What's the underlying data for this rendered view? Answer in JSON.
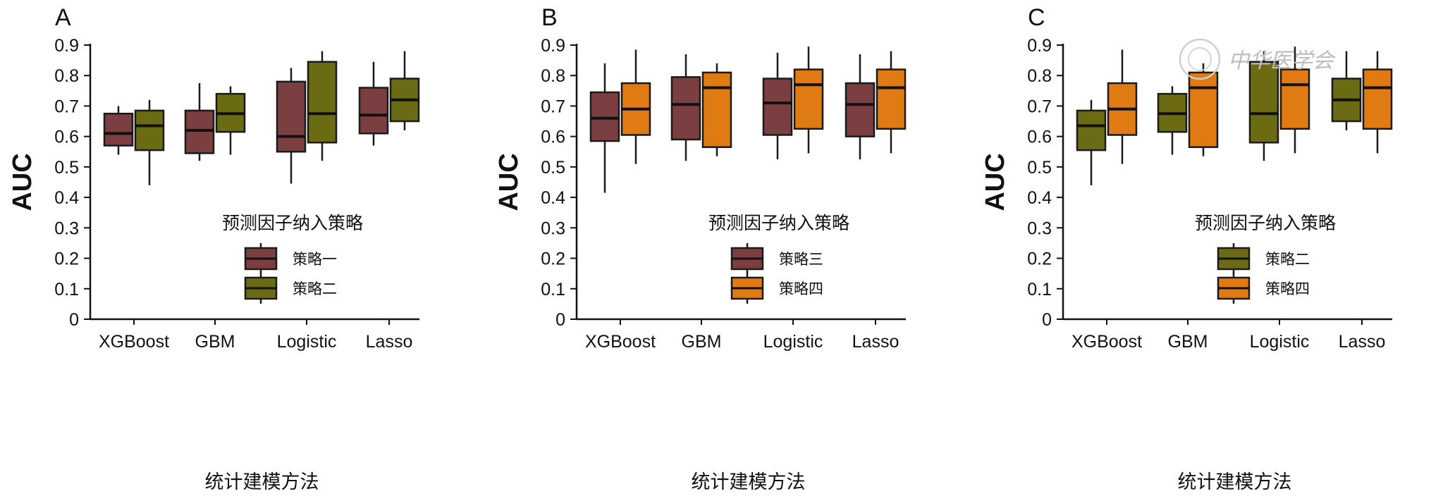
{
  "colors": {
    "strategy1": "#7b3f41",
    "strategy2": "#6b6b14",
    "strategy3": "#7b3f41",
    "strategy4": "#e07a12",
    "axis": "#111111"
  },
  "watermark": {
    "text": "中华医学会"
  },
  "chart_data": [
    {
      "panel": "A",
      "type": "box",
      "categories": [
        "XGBoost",
        "GBM",
        "Logistic",
        "Lasso"
      ],
      "xlabel": "统计建模方法",
      "ylabel": "AUC",
      "ylim": [
        0,
        0.9
      ],
      "yticks": [
        0,
        0.1,
        0.2,
        0.3,
        0.4,
        0.5,
        0.6,
        0.7,
        0.8,
        0.9
      ],
      "legend_title": "预测因子纳入策略",
      "series": [
        {
          "name": "策略一",
          "color": "#7b3f41",
          "boxes": [
            {
              "min": 0.54,
              "q1": 0.57,
              "median": 0.61,
              "q3": 0.675,
              "max": 0.7
            },
            {
              "min": 0.52,
              "q1": 0.545,
              "median": 0.62,
              "q3": 0.685,
              "max": 0.775
            },
            {
              "min": 0.445,
              "q1": 0.55,
              "median": 0.6,
              "q3": 0.78,
              "max": 0.825
            },
            {
              "min": 0.57,
              "q1": 0.61,
              "median": 0.67,
              "q3": 0.76,
              "max": 0.845
            }
          ]
        },
        {
          "name": "策略二",
          "color": "#6b6b14",
          "boxes": [
            {
              "min": 0.44,
              "q1": 0.555,
              "median": 0.635,
              "q3": 0.685,
              "max": 0.72
            },
            {
              "min": 0.54,
              "q1": 0.615,
              "median": 0.675,
              "q3": 0.74,
              "max": 0.765
            },
            {
              "min": 0.52,
              "q1": 0.58,
              "median": 0.675,
              "q3": 0.845,
              "max": 0.88
            },
            {
              "min": 0.62,
              "q1": 0.65,
              "median": 0.72,
              "q3": 0.79,
              "max": 0.88
            }
          ]
        }
      ]
    },
    {
      "panel": "B",
      "type": "box",
      "categories": [
        "XGBoost",
        "GBM",
        "Logistic",
        "Lasso"
      ],
      "xlabel": "统计建模方法",
      "ylabel": "AUC",
      "ylim": [
        0,
        0.9
      ],
      "yticks": [
        0,
        0.1,
        0.2,
        0.3,
        0.4,
        0.5,
        0.6,
        0.7,
        0.8,
        0.9
      ],
      "legend_title": "预测因子纳入策略",
      "series": [
        {
          "name": "策略三",
          "color": "#7b3f41",
          "boxes": [
            {
              "min": 0.415,
              "q1": 0.585,
              "median": 0.66,
              "q3": 0.745,
              "max": 0.84
            },
            {
              "min": 0.52,
              "q1": 0.59,
              "median": 0.705,
              "q3": 0.795,
              "max": 0.87
            },
            {
              "min": 0.525,
              "q1": 0.605,
              "median": 0.71,
              "q3": 0.79,
              "max": 0.875
            },
            {
              "min": 0.525,
              "q1": 0.6,
              "median": 0.705,
              "q3": 0.775,
              "max": 0.87
            }
          ]
        },
        {
          "name": "策略四",
          "color": "#e07a12",
          "boxes": [
            {
              "min": 0.51,
              "q1": 0.605,
              "median": 0.69,
              "q3": 0.775,
              "max": 0.885
            },
            {
              "min": 0.535,
              "q1": 0.565,
              "median": 0.76,
              "q3": 0.81,
              "max": 0.84
            },
            {
              "min": 0.545,
              "q1": 0.625,
              "median": 0.77,
              "q3": 0.82,
              "max": 0.895
            },
            {
              "min": 0.545,
              "q1": 0.625,
              "median": 0.76,
              "q3": 0.82,
              "max": 0.88
            }
          ]
        }
      ]
    },
    {
      "panel": "C",
      "type": "box",
      "categories": [
        "XGBoost",
        "GBM",
        "Logistic",
        "Lasso"
      ],
      "xlabel": "统计建模方法",
      "ylabel": "AUC",
      "ylim": [
        0,
        0.9
      ],
      "yticks": [
        0,
        0.1,
        0.2,
        0.3,
        0.4,
        0.5,
        0.6,
        0.7,
        0.8,
        0.9
      ],
      "legend_title": "预测因子纳入策略",
      "series": [
        {
          "name": "策略二",
          "color": "#6b6b14",
          "boxes": [
            {
              "min": 0.44,
              "q1": 0.555,
              "median": 0.635,
              "q3": 0.685,
              "max": 0.72
            },
            {
              "min": 0.54,
              "q1": 0.615,
              "median": 0.675,
              "q3": 0.74,
              "max": 0.765
            },
            {
              "min": 0.52,
              "q1": 0.58,
              "median": 0.675,
              "q3": 0.845,
              "max": 0.88
            },
            {
              "min": 0.62,
              "q1": 0.65,
              "median": 0.72,
              "q3": 0.79,
              "max": 0.88
            }
          ]
        },
        {
          "name": "策略四",
          "color": "#e07a12",
          "boxes": [
            {
              "min": 0.51,
              "q1": 0.605,
              "median": 0.69,
              "q3": 0.775,
              "max": 0.885
            },
            {
              "min": 0.535,
              "q1": 0.565,
              "median": 0.76,
              "q3": 0.81,
              "max": 0.84
            },
            {
              "min": 0.545,
              "q1": 0.625,
              "median": 0.77,
              "q3": 0.82,
              "max": 0.895
            },
            {
              "min": 0.545,
              "q1": 0.625,
              "median": 0.76,
              "q3": 0.82,
              "max": 0.88
            }
          ]
        }
      ]
    }
  ]
}
